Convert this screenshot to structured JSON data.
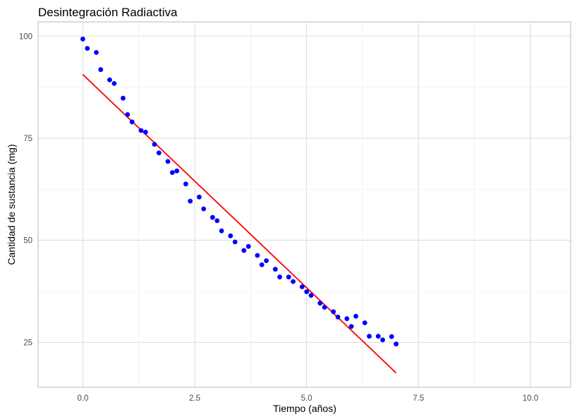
{
  "chart_data": {
    "type": "scatter",
    "title": "Desintegración Radiactiva",
    "xlabel": "Tiempo (años)",
    "ylabel": "Cantidad de sustancia (mg)",
    "xlim": [
      -1.0,
      10.9
    ],
    "ylim": [
      14,
      103.5
    ],
    "x_ticks": [
      0.0,
      2.5,
      5.0,
      7.5,
      10.0
    ],
    "x_tick_labels": [
      "0.0",
      "2.5",
      "5.0",
      "7.5",
      "10.0"
    ],
    "y_ticks": [
      25,
      50,
      75,
      100
    ],
    "y_tick_labels": [
      "25",
      "50",
      "75",
      "100"
    ],
    "grid": true,
    "legend": "none",
    "series": [
      {
        "type": "scatter",
        "color": "#0000ff",
        "points": [
          [
            0.0,
            99.3
          ],
          [
            0.1,
            97.0
          ],
          [
            0.3,
            96.0
          ],
          [
            0.4,
            91.8
          ],
          [
            0.6,
            89.3
          ],
          [
            0.7,
            88.4
          ],
          [
            0.9,
            84.8
          ],
          [
            1.0,
            80.8
          ],
          [
            1.1,
            79.0
          ],
          [
            1.3,
            76.9
          ],
          [
            1.4,
            76.5
          ],
          [
            1.6,
            73.5
          ],
          [
            1.7,
            71.4
          ],
          [
            1.9,
            69.3
          ],
          [
            2.0,
            66.6
          ],
          [
            2.1,
            67.0
          ],
          [
            2.3,
            63.8
          ],
          [
            2.4,
            59.6
          ],
          [
            2.6,
            60.6
          ],
          [
            2.7,
            57.7
          ],
          [
            2.9,
            55.6
          ],
          [
            3.0,
            54.8
          ],
          [
            3.1,
            52.3
          ],
          [
            3.3,
            51.1
          ],
          [
            3.4,
            49.6
          ],
          [
            3.6,
            47.5
          ],
          [
            3.7,
            48.5
          ],
          [
            3.9,
            46.3
          ],
          [
            4.0,
            44.0
          ],
          [
            4.1,
            45.0
          ],
          [
            4.3,
            42.9
          ],
          [
            4.4,
            41.0
          ],
          [
            4.6,
            41.0
          ],
          [
            4.7,
            39.9
          ],
          [
            4.9,
            38.6
          ],
          [
            5.0,
            37.4
          ],
          [
            5.1,
            36.5
          ],
          [
            5.3,
            34.6
          ],
          [
            5.4,
            33.6
          ],
          [
            5.6,
            32.5
          ],
          [
            5.7,
            31.2
          ],
          [
            5.9,
            30.8
          ],
          [
            6.0,
            28.9
          ],
          [
            6.1,
            31.4
          ],
          [
            6.3,
            29.8
          ],
          [
            6.4,
            26.5
          ],
          [
            6.6,
            26.5
          ],
          [
            6.7,
            25.6
          ],
          [
            6.9,
            26.4
          ],
          [
            7.0,
            24.6
          ]
        ]
      },
      {
        "type": "line",
        "color": "#ff0000",
        "points": [
          [
            0.0,
            90.6
          ],
          [
            7.0,
            17.5
          ]
        ]
      }
    ]
  }
}
